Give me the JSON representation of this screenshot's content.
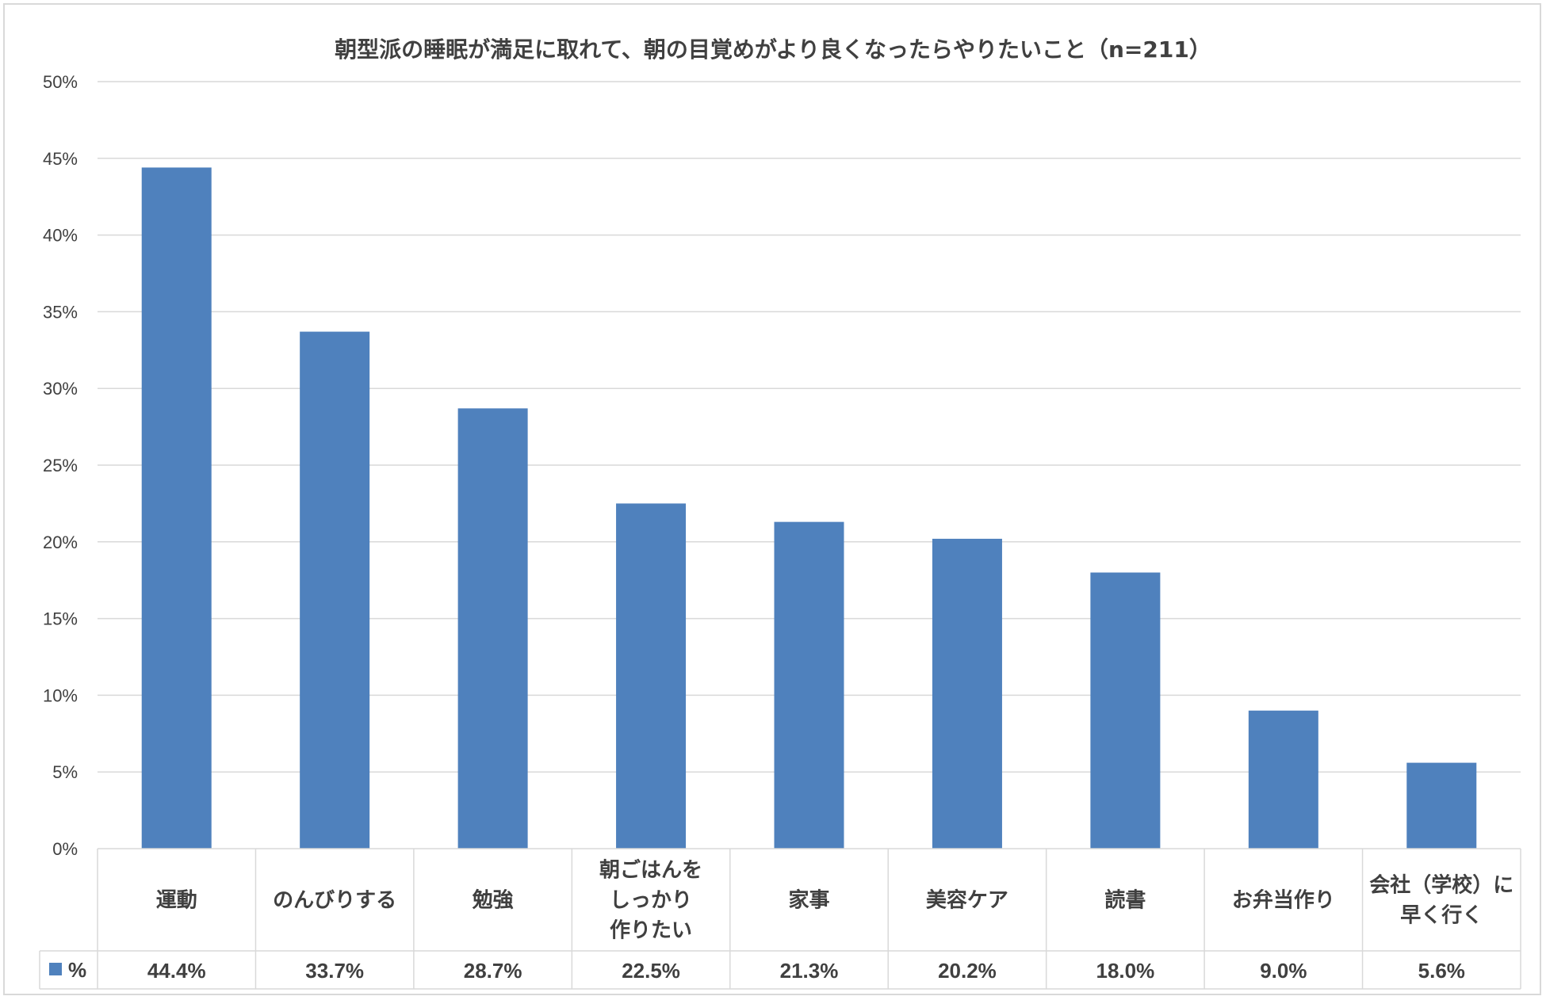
{
  "chart_data": {
    "type": "bar",
    "title": "朝型派の睡眠が満足に取れて、朝の目覚めがより良くなったらやりたいこと（n=211）",
    "categories": [
      [
        "運動"
      ],
      [
        "のんびりする"
      ],
      [
        "勉強"
      ],
      [
        "朝ごはんを",
        "しっかり",
        "作りたい"
      ],
      [
        "家事"
      ],
      [
        "美容ケア"
      ],
      [
        "読書"
      ],
      [
        "お弁当作り"
      ],
      [
        "会社（学校）に",
        "早く行く"
      ]
    ],
    "series": [
      {
        "name": "%",
        "values": [
          44.4,
          33.7,
          28.7,
          22.5,
          21.3,
          20.2,
          18.0,
          9.0,
          5.6
        ],
        "labels": [
          "44.4%",
          "33.7%",
          "28.7%",
          "22.5%",
          "21.3%",
          "20.2%",
          "18.0%",
          "9.0%",
          "5.6%"
        ],
        "color": "#4f81bd"
      }
    ],
    "ylim": [
      0,
      50
    ],
    "yticks": [
      "0%",
      "5%",
      "10%",
      "15%",
      "20%",
      "25%",
      "30%",
      "35%",
      "40%",
      "45%",
      "50%"
    ],
    "grid": true,
    "legend": "data-table"
  }
}
